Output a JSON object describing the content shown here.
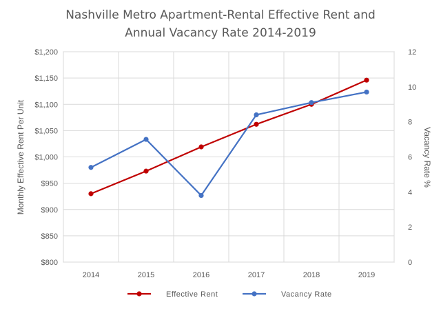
{
  "chart_data": {
    "type": "line",
    "title_line1": "Nashville Metro Apartment-Rental Effective Rent and",
    "title_line2": "Annual Vacancy Rate 2014-2019",
    "xlabel": "",
    "ylabel_left": "Monthly Effective Rent Per Unit",
    "ylabel_right": "Vacancy Rate %",
    "categories": [
      "2014",
      "2015",
      "2016",
      "2017",
      "2018",
      "2019"
    ],
    "y_left": {
      "min": 800,
      "max": 1200,
      "step": 50,
      "ticks": [
        "$800",
        "$850",
        "$900",
        "$950",
        "$1,000",
        "$1,050",
        "$1,100",
        "$1,150",
        "$1,200"
      ]
    },
    "y_right": {
      "min": 0,
      "max": 12,
      "step": 2,
      "ticks": [
        "0",
        "2",
        "4",
        "6",
        "8",
        "10",
        "12"
      ]
    },
    "grid": true,
    "legend_position": "bottom",
    "series": [
      {
        "name": "Effective Rent",
        "axis": "left",
        "color": "#c00000",
        "values": [
          930,
          973,
          1019,
          1062,
          1100,
          1146
        ]
      },
      {
        "name": "Vacancy Rate",
        "axis": "right",
        "color": "#4472c4",
        "values": [
          5.4,
          7.0,
          3.8,
          8.4,
          9.1,
          9.7
        ]
      }
    ]
  }
}
